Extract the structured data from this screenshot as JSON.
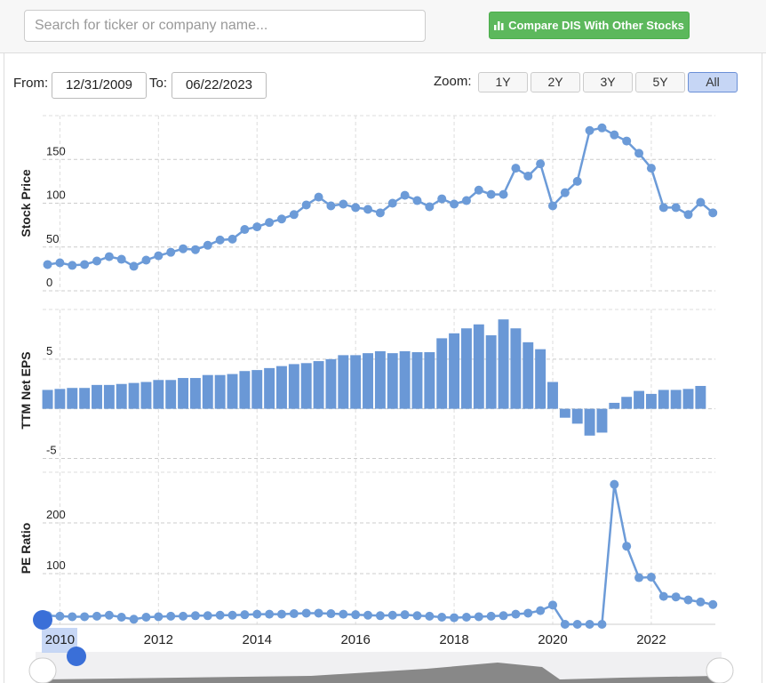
{
  "ui": {
    "search_placeholder": "Search for ticker or company name...",
    "compare_button": "Compare DIS With Other Stocks",
    "from_label": "From:",
    "from_date": "12/31/2009",
    "to_label": "To:",
    "to_date": "06/22/2023",
    "zoom_label": "Zoom:",
    "zoom_options": [
      "1Y",
      "2Y",
      "3Y",
      "5Y",
      "All"
    ],
    "zoom_selected": 4
  },
  "chart_data": [
    {
      "type": "line",
      "ylabel": "Stock Price",
      "color": "#6c9bd8",
      "x": [
        2009.75,
        2010,
        2010.25,
        2010.5,
        2010.75,
        2011,
        2011.25,
        2011.5,
        2011.75,
        2012,
        2012.25,
        2012.5,
        2012.75,
        2013,
        2013.25,
        2013.5,
        2013.75,
        2014,
        2014.25,
        2014.5,
        2014.75,
        2015,
        2015.25,
        2015.5,
        2015.75,
        2016,
        2016.25,
        2016.5,
        2016.75,
        2017,
        2017.25,
        2017.5,
        2017.75,
        2018,
        2018.25,
        2018.5,
        2018.75,
        2019,
        2019.25,
        2019.5,
        2019.75,
        2020,
        2020.25,
        2020.5,
        2020.75,
        2021,
        2021.25,
        2021.5,
        2021.75,
        2022,
        2022.25,
        2022.5,
        2022.75,
        2023,
        2023.25
      ],
      "values": [
        30,
        32,
        29,
        30,
        34,
        39,
        36,
        28,
        35,
        40,
        44,
        48,
        47,
        52,
        58,
        59,
        70,
        73,
        78,
        82,
        87,
        98,
        107,
        97,
        99,
        95,
        93,
        89,
        100,
        109,
        103,
        96,
        105,
        99,
        103,
        115,
        110,
        110,
        140,
        131,
        145,
        97,
        112,
        125,
        183,
        186,
        178,
        171,
        157,
        140,
        95,
        95,
        87,
        101,
        89
      ],
      "xlim": [
        2009.65,
        2023.3
      ],
      "xticks": [
        2010,
        2012,
        2014,
        2016,
        2018,
        2020,
        2022
      ],
      "ylim": [
        0,
        200
      ],
      "yticks": [
        0,
        50,
        100,
        150
      ],
      "grid": true
    },
    {
      "type": "bar",
      "ylabel": "TTM Net EPS",
      "color": "#6a98d6",
      "x": [
        2009.75,
        2010,
        2010.25,
        2010.5,
        2010.75,
        2011,
        2011.25,
        2011.5,
        2011.75,
        2012,
        2012.25,
        2012.5,
        2012.75,
        2013,
        2013.25,
        2013.5,
        2013.75,
        2014,
        2014.25,
        2014.5,
        2014.75,
        2015,
        2015.25,
        2015.5,
        2015.75,
        2016,
        2016.25,
        2016.5,
        2016.75,
        2017,
        2017.25,
        2017.5,
        2017.75,
        2018,
        2018.25,
        2018.5,
        2018.75,
        2019,
        2019.25,
        2019.5,
        2019.75,
        2020,
        2020.25,
        2020.5,
        2020.75,
        2021,
        2021.25,
        2021.5,
        2021.75,
        2022,
        2022.25,
        2022.5,
        2022.75,
        2023,
        2023.25
      ],
      "values": [
        1.9,
        2.0,
        2.1,
        2.1,
        2.4,
        2.4,
        2.5,
        2.6,
        2.7,
        2.9,
        2.9,
        3.1,
        3.1,
        3.4,
        3.4,
        3.5,
        3.8,
        3.9,
        4.1,
        4.3,
        4.5,
        4.6,
        4.8,
        5.0,
        5.4,
        5.4,
        5.6,
        5.8,
        5.6,
        5.8,
        5.7,
        5.7,
        7.1,
        7.6,
        8.1,
        8.5,
        7.4,
        9.0,
        8.1,
        6.7,
        6.0,
        2.7,
        -0.9,
        -1.5,
        -2.7,
        -2.4,
        0.6,
        1.2,
        1.8,
        1.5,
        1.9,
        1.9,
        2.0,
        2.3,
        null
      ],
      "xlim": [
        2009.65,
        2023.3
      ],
      "xticks": [
        2010,
        2012,
        2014,
        2016,
        2018,
        2020,
        2022
      ],
      "ylim": [
        -6.3,
        10
      ],
      "yticks": [
        -5,
        0,
        5
      ],
      "grid": true
    },
    {
      "type": "line",
      "ylabel": "PE Ratio",
      "color": "#6c9bd8",
      "x": [
        2009.75,
        2010,
        2010.25,
        2010.5,
        2010.75,
        2011,
        2011.25,
        2011.5,
        2011.75,
        2012,
        2012.25,
        2012.5,
        2012.75,
        2013,
        2013.25,
        2013.5,
        2013.75,
        2014,
        2014.25,
        2014.5,
        2014.75,
        2015,
        2015.25,
        2015.5,
        2015.75,
        2016,
        2016.25,
        2016.5,
        2016.75,
        2017,
        2017.25,
        2017.5,
        2017.75,
        2018,
        2018.25,
        2018.5,
        2018.75,
        2019,
        2019.25,
        2019.5,
        2019.75,
        2020,
        2020.25,
        2020.5,
        2020.75,
        2021,
        2021.25,
        2021.5,
        2021.75,
        2022,
        2022.25,
        2022.5,
        2022.75,
        2023,
        2023.25
      ],
      "values": [
        17,
        16,
        15,
        15,
        16,
        18,
        14,
        10,
        14,
        15,
        16,
        16,
        17,
        17,
        18,
        18,
        19,
        20,
        20,
        20,
        21,
        22,
        22,
        21,
        20,
        19,
        18,
        17,
        18,
        19,
        17,
        16,
        14,
        13,
        14,
        15,
        16,
        17,
        20,
        22,
        27,
        38,
        0,
        0,
        0,
        0,
        276,
        154,
        92,
        93,
        55,
        54,
        48,
        44,
        39
      ],
      "xlim": [
        2009.65,
        2023.3
      ],
      "xticks": [
        2010,
        2012,
        2014,
        2016,
        2018,
        2020,
        2022
      ],
      "ylim": [
        0,
        300
      ],
      "yticks": [
        100,
        200
      ],
      "grid": true
    }
  ]
}
